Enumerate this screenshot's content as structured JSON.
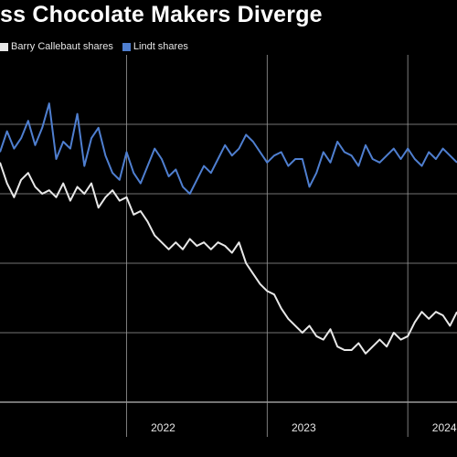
{
  "colors": {
    "background": "#000000",
    "grid": "#9a9a9a",
    "series_primary": "#e8e8e8",
    "series_secondary": "#4f7fd0"
  },
  "chart_data": {
    "type": "line",
    "title": "ss Chocolate Makers Diverge",
    "legend_placement": "top-left",
    "grid": true,
    "x_tick_labels": [
      "2022",
      "2023",
      "2024"
    ],
    "x_ticks": [
      2022.0,
      2023.0,
      2024.0
    ],
    "xlim": [
      2021.1,
      2024.35
    ],
    "ylim": [
      0,
      100
    ],
    "y_gridlines": [
      0,
      20,
      40,
      60,
      80
    ],
    "series": [
      {
        "name": "Barry Callebaut shares",
        "color": "#e8e8e8",
        "x": [
          2021.1,
          2021.15,
          2021.2,
          2021.25,
          2021.3,
          2021.35,
          2021.4,
          2021.45,
          2021.5,
          2021.55,
          2021.6,
          2021.65,
          2021.7,
          2021.75,
          2021.8,
          2021.85,
          2021.9,
          2021.95,
          2022.0,
          2022.05,
          2022.1,
          2022.15,
          2022.2,
          2022.25,
          2022.3,
          2022.35,
          2022.4,
          2022.45,
          2022.5,
          2022.55,
          2022.6,
          2022.65,
          2022.7,
          2022.75,
          2022.8,
          2022.85,
          2022.9,
          2022.95,
          2023.0,
          2023.05,
          2023.1,
          2023.15,
          2023.2,
          2023.25,
          2023.3,
          2023.35,
          2023.4,
          2023.45,
          2023.5,
          2023.55,
          2023.6,
          2023.65,
          2023.7,
          2023.75,
          2023.8,
          2023.85,
          2023.9,
          2023.95,
          2024.0,
          2024.05,
          2024.1,
          2024.15,
          2024.2,
          2024.25,
          2024.3,
          2024.35
        ],
        "values": [
          69,
          63,
          59,
          64,
          66,
          62,
          60,
          61,
          59,
          63,
          58,
          62,
          60,
          63,
          56,
          59,
          61,
          58,
          59,
          54,
          55,
          52,
          48,
          46,
          44,
          46,
          44,
          47,
          45,
          46,
          44,
          46,
          45,
          43,
          46,
          40,
          37,
          34,
          32,
          31,
          27,
          24,
          22,
          20,
          22,
          19,
          18,
          21,
          16,
          15,
          15,
          17,
          14,
          16,
          18,
          16,
          20,
          18,
          19,
          23,
          26,
          24,
          26,
          25,
          22,
          26
        ]
      },
      {
        "name": "Lindt shares",
        "color": "#4f7fd0",
        "x": [
          2021.1,
          2021.15,
          2021.2,
          2021.25,
          2021.3,
          2021.35,
          2021.4,
          2021.45,
          2021.5,
          2021.55,
          2021.6,
          2021.65,
          2021.7,
          2021.75,
          2021.8,
          2021.85,
          2021.9,
          2021.95,
          2022.0,
          2022.05,
          2022.1,
          2022.15,
          2022.2,
          2022.25,
          2022.3,
          2022.35,
          2022.4,
          2022.45,
          2022.5,
          2022.55,
          2022.6,
          2022.65,
          2022.7,
          2022.75,
          2022.8,
          2022.85,
          2022.9,
          2022.95,
          2023.0,
          2023.05,
          2023.1,
          2023.15,
          2023.2,
          2023.25,
          2023.3,
          2023.35,
          2023.4,
          2023.45,
          2023.5,
          2023.55,
          2023.6,
          2023.65,
          2023.7,
          2023.75,
          2023.8,
          2023.85,
          2023.9,
          2023.95,
          2024.0,
          2024.05,
          2024.1,
          2024.15,
          2024.2,
          2024.25,
          2024.3,
          2024.35
        ],
        "values": [
          72,
          78,
          73,
          76,
          81,
          74,
          79,
          86,
          70,
          75,
          73,
          83,
          68,
          76,
          79,
          71,
          66,
          64,
          72,
          66,
          63,
          68,
          73,
          70,
          65,
          67,
          62,
          60,
          64,
          68,
          66,
          70,
          74,
          71,
          73,
          77,
          75,
          72,
          69,
          71,
          72,
          68,
          70,
          70,
          62,
          66,
          72,
          69,
          75,
          72,
          71,
          68,
          74,
          70,
          69,
          71,
          73,
          70,
          73,
          70,
          68,
          72,
          70,
          73,
          71,
          69
        ]
      }
    ]
  }
}
